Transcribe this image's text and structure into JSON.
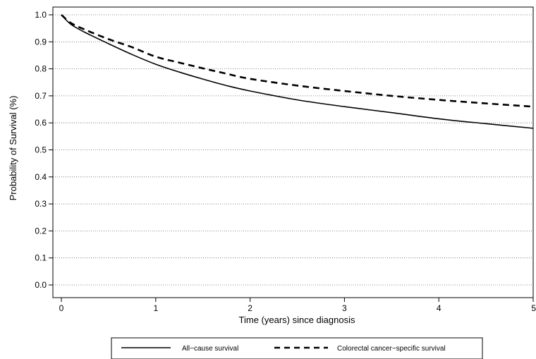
{
  "chart_data": {
    "type": "line",
    "title": "",
    "xlabel": "Time (years) since diagnosis",
    "ylabel": "Probability of Survival (%)",
    "xlim": [
      0,
      5
    ],
    "ylim": [
      0,
      1
    ],
    "x_ticks": [
      "0",
      "1",
      "2",
      "3",
      "4",
      "5"
    ],
    "y_ticks": [
      "0.0",
      "0.1",
      "0.2",
      "0.3",
      "0.4",
      "0.5",
      "0.6",
      "0.7",
      "0.8",
      "0.9",
      "1.0"
    ],
    "grid": "horizontal-dotted",
    "legend_position": "bottom",
    "series": [
      {
        "name": "All−cause survival",
        "style": "solid",
        "color": "#000000",
        "x": [
          0,
          0.1,
          0.25,
          0.5,
          0.75,
          1,
          1.25,
          1.5,
          1.75,
          2,
          2.5,
          3,
          3.5,
          4,
          4.5,
          5
        ],
        "y": [
          1.0,
          0.965,
          0.935,
          0.893,
          0.853,
          0.817,
          0.788,
          0.762,
          0.738,
          0.718,
          0.685,
          0.66,
          0.638,
          0.615,
          0.597,
          0.58
        ]
      },
      {
        "name": "Colorectal cancer−specific survival",
        "style": "dashed",
        "color": "#000000",
        "x": [
          0,
          0.1,
          0.25,
          0.5,
          0.75,
          1,
          1.25,
          1.5,
          1.75,
          2,
          2.5,
          3,
          3.5,
          4,
          4.5,
          5
        ],
        "y": [
          1.0,
          0.97,
          0.945,
          0.91,
          0.88,
          0.845,
          0.823,
          0.802,
          0.782,
          0.763,
          0.738,
          0.718,
          0.7,
          0.685,
          0.672,
          0.66
        ]
      }
    ]
  }
}
